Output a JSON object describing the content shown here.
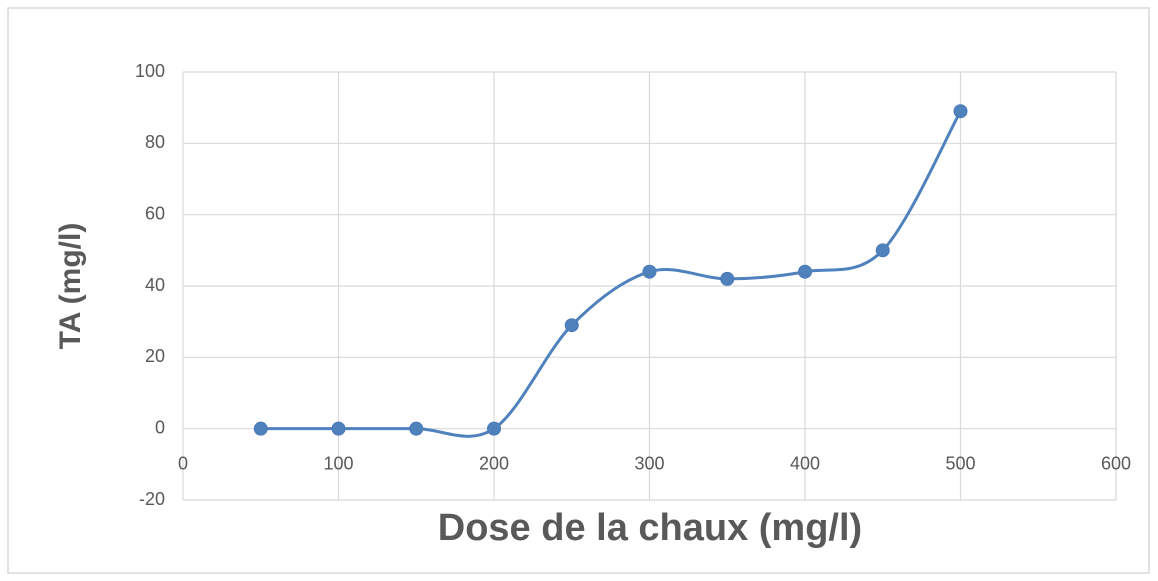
{
  "chart_data": {
    "type": "line",
    "smooth": true,
    "markers": true,
    "x_label": "Dose de la chaux (mg/l)",
    "y_label": "TA (mg/l)",
    "x": [
      50,
      100,
      150,
      200,
      250,
      300,
      350,
      400,
      450,
      500
    ],
    "series": [
      {
        "color": "#4f81bd",
        "values": [
          0,
          0,
          0,
          0,
          29,
          44,
          42,
          44,
          50,
          89
        ]
      }
    ],
    "xlim": [
      0,
      600
    ],
    "xticks": [
      0,
      100,
      200,
      300,
      400,
      500,
      600
    ],
    "ylim": [
      -20,
      100
    ],
    "yticks": [
      -20,
      0,
      20,
      40,
      60,
      80,
      100
    ],
    "grid": true
  }
}
